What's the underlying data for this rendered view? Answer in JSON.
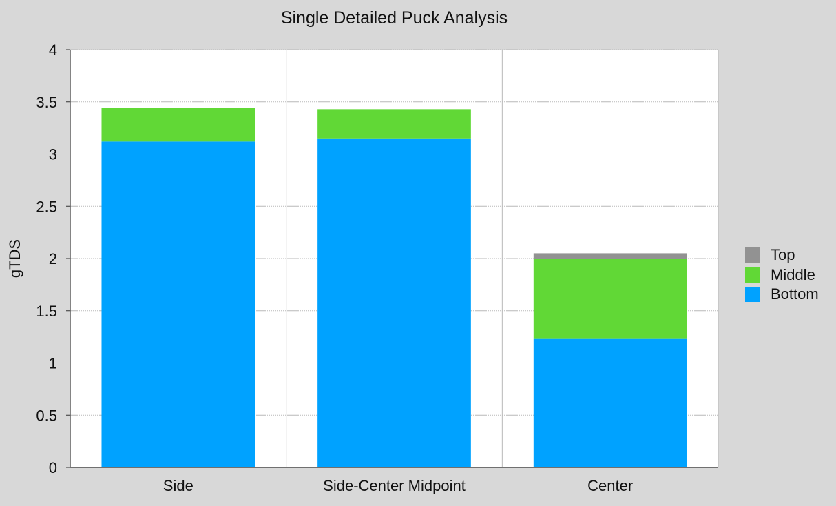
{
  "chart_data": {
    "type": "bar",
    "stacked": true,
    "title": "Single Detailed Puck Analysis",
    "xlabel": "",
    "ylabel": "gTDS",
    "ylim": [
      0,
      4
    ],
    "yticks": [
      "0",
      "0.5",
      "1",
      "1.5",
      "2",
      "2.5",
      "3",
      "3.5",
      "4"
    ],
    "categories": [
      "Side",
      "Side-Center Midpoint",
      "Center"
    ],
    "series": [
      {
        "name": "Bottom",
        "color": "#00a2ff",
        "values": [
          3.12,
          3.15,
          1.23
        ]
      },
      {
        "name": "Middle",
        "color": "#61d836",
        "values": [
          0.32,
          0.28,
          0.77
        ]
      },
      {
        "name": "Top",
        "color": "#929292",
        "values": [
          0.0,
          0.0,
          0.05
        ]
      }
    ],
    "legend": {
      "position": "right",
      "order": [
        "Top",
        "Middle",
        "Bottom"
      ]
    },
    "grid": true
  }
}
